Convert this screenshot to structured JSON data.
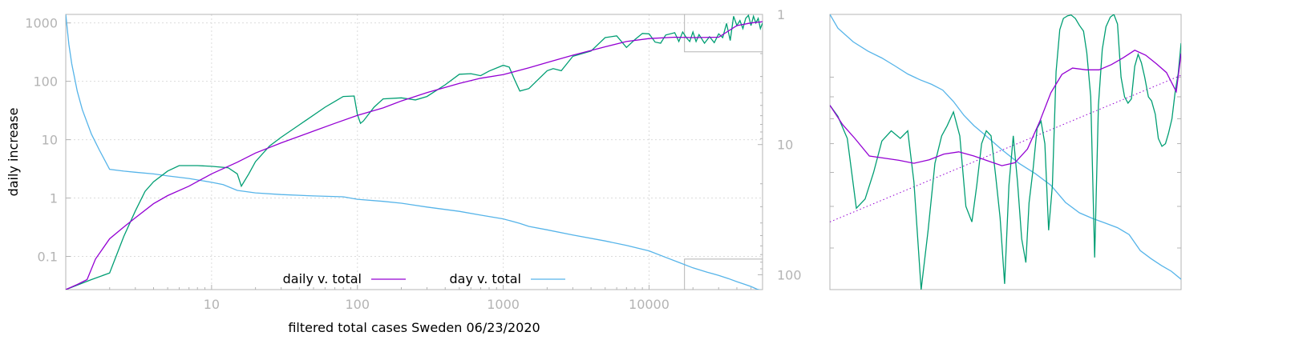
{
  "chart_data": [
    {
      "type": "line",
      "xlabel": "filtered total cases Sweden 06/23/2020",
      "ylabel": "daily increase",
      "xscale": "log",
      "yscale": "log",
      "xlim": [
        1,
        60000
      ],
      "ylim": [
        0.027,
        1400
      ],
      "y2scale": "log",
      "y2lim": [
        130,
        1
      ],
      "y2_ticks": [
        1,
        10,
        100
      ],
      "y2_tick_labels": [
        "1",
        "10",
        "100"
      ],
      "x_ticks": [
        10,
        100,
        1000,
        10000
      ],
      "x_tick_labels": [
        "10",
        "100",
        "1000",
        "10000"
      ],
      "y_ticks": [
        0.1,
        1,
        10,
        100,
        1000
      ],
      "y_tick_labels": [
        "0.1",
        "1",
        "10",
        "100",
        "1000"
      ],
      "grid": true,
      "legend_position": "bottom-center",
      "inset_box": {
        "x": [
          17500,
          60000
        ],
        "y": [
          0.027,
          0.09
        ],
        "y_top": [
          320,
          1400
        ]
      },
      "series": [
        {
          "name": "daily v. total",
          "color": "#9400d3",
          "axis": "y",
          "x": [
            1,
            1.2,
            1.4,
            1.6,
            2,
            2.5,
            3,
            4,
            5,
            7,
            10,
            15,
            20,
            30,
            50,
            70,
            100,
            150,
            200,
            300,
            500,
            700,
            1000,
            1500,
            2000,
            3000,
            5000,
            7000,
            10000,
            15000,
            20000,
            30000,
            40000,
            50000,
            60000
          ],
          "y": [
            0.027,
            0.033,
            0.04,
            0.09,
            0.2,
            0.32,
            0.46,
            0.8,
            1.1,
            1.6,
            2.6,
            4.1,
            5.9,
            8.8,
            14,
            19,
            26,
            35,
            46,
            64,
            92,
            113,
            130,
            170,
            210,
            280,
            390,
            480,
            540,
            570,
            560,
            570,
            900,
            1000,
            1050
          ]
        },
        {
          "name": "",
          "color": "#009e73",
          "axis": "y",
          "x": [
            1,
            1.5,
            2,
            2.5,
            3,
            3.5,
            4,
            5,
            6,
            8,
            10,
            13,
            15,
            16,
            18,
            20,
            25,
            30,
            40,
            60,
            80,
            95,
            100,
            105,
            110,
            130,
            150,
            200,
            250,
            300,
            400,
            500,
            600,
            700,
            800,
            1000,
            1100,
            1200,
            1300,
            1500,
            2000,
            2200,
            2500,
            3000,
            4000,
            5000,
            6000,
            7000,
            8000,
            9000,
            10000,
            11000,
            12000,
            13000,
            15000,
            16000,
            17000,
            18000,
            19000,
            20000,
            21000,
            22000,
            24000,
            26000,
            28000,
            30000,
            32000,
            34000,
            36000,
            38000,
            40000,
            42000,
            44000,
            46000,
            48000,
            50000,
            52000,
            54000,
            56000,
            58000,
            60000
          ],
          "y": [
            0.027,
            0.04,
            0.052,
            0.22,
            0.6,
            1.3,
            1.9,
            2.9,
            3.6,
            3.6,
            3.5,
            3.3,
            2.6,
            1.6,
            2.6,
            4.2,
            7.8,
            11,
            18,
            36,
            55,
            56,
            27,
            19,
            21,
            36,
            50,
            52,
            48,
            55,
            87,
            132,
            135,
            125,
            150,
            188,
            175,
            105,
            68,
            75,
            152,
            165,
            152,
            268,
            330,
            560,
            600,
            380,
            520,
            660,
            650,
            470,
            450,
            620,
            680,
            480,
            700,
            560,
            480,
            700,
            480,
            630,
            450,
            580,
            460,
            650,
            560,
            980,
            500,
            1300,
            900,
            1100,
            800,
            1200,
            1350,
            900,
            1300,
            1000,
            1200,
            800,
            1000
          ]
        },
        {
          "name": "day v. total",
          "color": "#56b4e9",
          "axis": "y2",
          "x": [
            1,
            1.05,
            1.1,
            1.2,
            1.3,
            1.5,
            1.7,
            2,
            2.5,
            3,
            4,
            5,
            7,
            10,
            12,
            15,
            20,
            30,
            50,
            80,
            100,
            150,
            200,
            300,
            500,
            700,
            1000,
            1300,
            1500,
            2000,
            3000,
            5000,
            7000,
            10000,
            13000,
            16000,
            20000,
            25000,
            30000,
            35000,
            40000,
            45000,
            50000,
            55000,
            60000
          ],
          "y": [
            1,
            1.7,
            2.4,
            3.9,
            5.4,
            8.3,
            11,
            15.5,
            16,
            16.3,
            16.8,
            17.4,
            18.2,
            19.5,
            20.3,
            22.5,
            23.5,
            24.2,
            24.8,
            25.2,
            26.3,
            27.3,
            28.2,
            30.2,
            32.6,
            34.8,
            37.2,
            40.3,
            42.5,
            45.2,
            49.5,
            55,
            59.5,
            65.5,
            73.5,
            80.3,
            88.5,
            95.5,
            101,
            107,
            113,
            118,
            123,
            129,
            132
          ]
        }
      ]
    },
    {
      "type": "line",
      "title": "",
      "xlabel": "",
      "ylabel": "",
      "xscale": "log",
      "yscale": "log",
      "xlim": [
        17500,
        60000
      ],
      "ylim": [
        320,
        1400
      ],
      "y_ticks": [
        400,
        500,
        600,
        700,
        800,
        900,
        1000
      ],
      "grid": false,
      "series": [
        {
          "name": "daily v. total",
          "color": "#9400d3",
          "axis": "y",
          "x": [
            17500,
            18300,
            19100,
            20100,
            21100,
            22300,
            23500,
            24800,
            26100,
            27500,
            29000,
            30500,
            32000,
            33500,
            35000,
            36500,
            38000,
            39500,
            41000,
            43000,
            45000,
            47000,
            49000,
            51000,
            53000,
            55000,
            57000,
            59000,
            60000
          ],
          "y": [
            860,
            775,
            720,
            655,
            648,
            640,
            630,
            642,
            662,
            670,
            655,
            638,
            622,
            632,
            680,
            785,
            920,
            1015,
            1050,
            1040,
            1040,
            1070,
            1110,
            1155,
            1125,
            1075,
            1025,
            925,
            1135
          ]
        },
        {
          "name": "",
          "color": "#009e73",
          "axis": "y",
          "x": [
            17500,
            18000,
            18600,
            19200,
            19800,
            20400,
            21000,
            21700,
            22400,
            23000,
            23500,
            24100,
            24700,
            25300,
            25900,
            26400,
            27000,
            27600,
            28200,
            28800,
            29300,
            29800,
            30300,
            30800,
            31300,
            31800,
            32300,
            32800,
            33300,
            33800,
            34300,
            34800,
            35200,
            35700,
            36200,
            36700,
            37200,
            37700,
            38200,
            38700,
            39200,
            39700,
            40300,
            40800,
            41400,
            42000,
            42600,
            43100,
            43700,
            44300,
            44900,
            45500,
            46100,
            46800,
            47400,
            48000,
            48600,
            49200,
            49800,
            50400,
            51000,
            51600,
            52200,
            52800,
            53500,
            54100,
            54800,
            55400,
            56100,
            56800,
            57400,
            58100,
            58800,
            59400,
            60000
          ],
          "y": [
            860,
            810,
            720,
            495,
            520,
            600,
            710,
            750,
            720,
            750,
            570,
            320,
            440,
            630,
            730,
            770,
            830,
            730,
            500,
            460,
            560,
            700,
            750,
            730,
            590,
            470,
            330,
            560,
            730,
            570,
            420,
            370,
            510,
            610,
            760,
            790,
            700,
            440,
            560,
            1030,
            1290,
            1370,
            1390,
            1395,
            1370,
            1320,
            1280,
            1140,
            900,
            380,
            860,
            1160,
            1310,
            1380,
            1400,
            1330,
            1000,
            900,
            870,
            890,
            1060,
            1130,
            1080,
            1000,
            900,
            880,
            820,
            720,
            690,
            700,
            740,
            800,
            930,
            1020,
            1200
          ]
        },
        {
          "name": "day v. total",
          "color": "#56b4e9",
          "axis": "y2",
          "x": [
            17500,
            18000,
            19000,
            20000,
            21000,
            22000,
            23000,
            24000,
            25000,
            26000,
            27000,
            28000,
            29000,
            30000,
            32000,
            34000,
            36000,
            38000,
            40000,
            42000,
            44000,
            46000,
            48000,
            50000,
            52000,
            54000,
            56000,
            58000,
            60000
          ],
          "y": [
            1,
            1.6,
            2.2,
            2.6,
            2.9,
            3.25,
            3.6,
            3.85,
            4.05,
            4.3,
            4.8,
            5.4,
            5.85,
            6.2,
            6.9,
            7.5,
            7.95,
            8.45,
            9.2,
            9.65,
            9.9,
            10.1,
            10.3,
            10.6,
            11.3,
            11.65,
            11.95,
            12.2,
            12.55
          ]
        },
        {
          "name": "",
          "color": "#9400d3",
          "style": "dotted",
          "axis": "y",
          "x": [
            17500,
            60000
          ],
          "y": [
            460,
            1010
          ]
        }
      ]
    }
  ],
  "legend": [
    {
      "label": "daily v. total",
      "color": "#9400d3"
    },
    {
      "label": "day v. total",
      "color": "#56b4e9"
    }
  ],
  "colors": {
    "axis": "#b4b4b4",
    "grid": "#dcdcdc",
    "text": "#000000",
    "tick_text": "#b4b4b4"
  }
}
